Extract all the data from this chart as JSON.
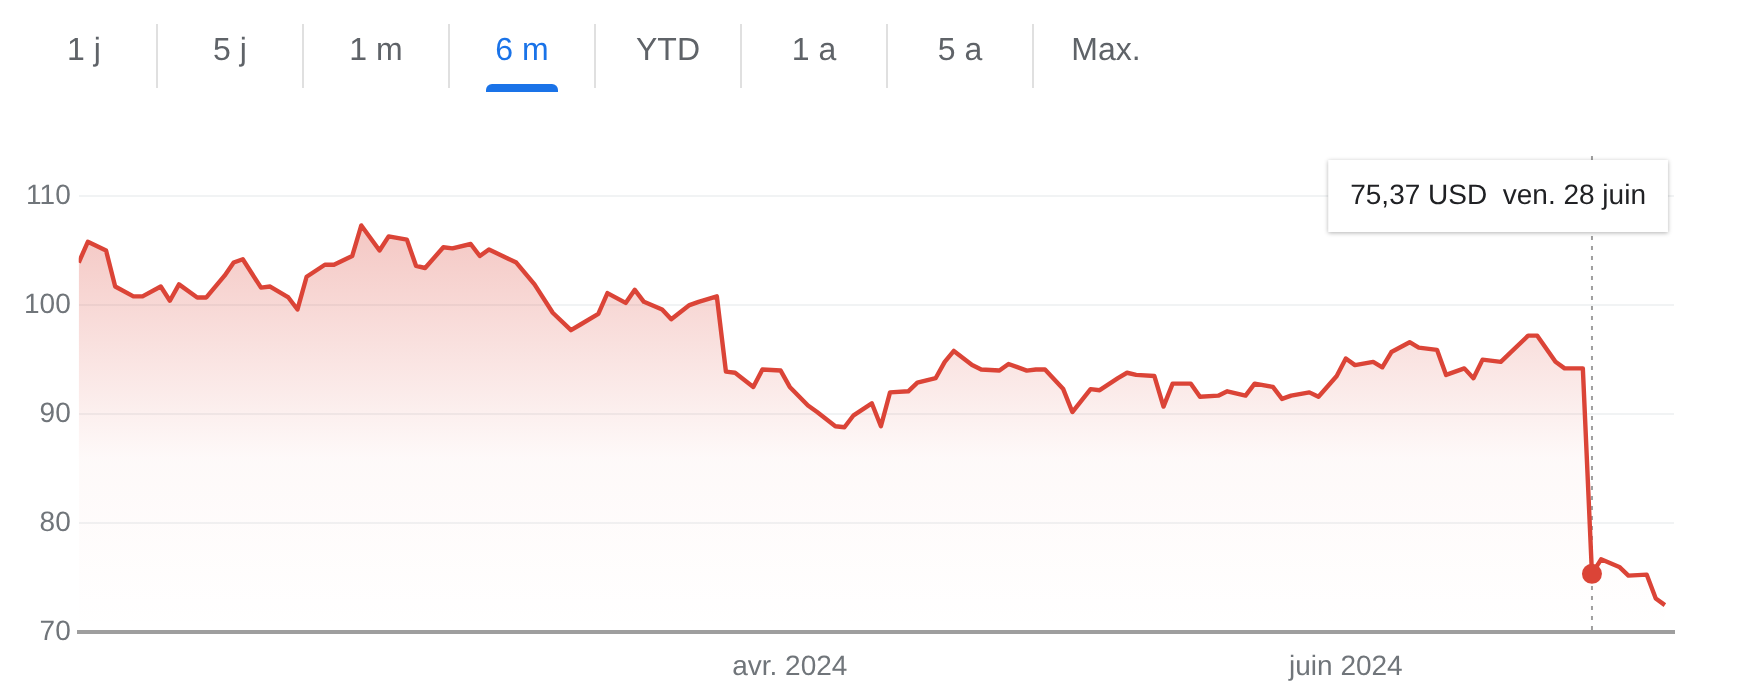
{
  "chart_data": {
    "type": "area",
    "x": [
      "2024-01-14",
      "2024-01-15",
      "2024-01-17",
      "2024-01-18",
      "2024-01-20",
      "2024-01-21",
      "2024-01-23",
      "2024-01-24",
      "2024-01-25",
      "2024-01-27",
      "2024-01-28",
      "2024-01-30",
      "2024-01-31",
      "2024-02-01",
      "2024-02-03",
      "2024-02-04",
      "2024-02-06",
      "2024-02-07",
      "2024-02-08",
      "2024-02-10",
      "2024-02-11",
      "2024-02-13",
      "2024-02-14",
      "2024-02-16",
      "2024-02-17",
      "2024-02-19",
      "2024-02-20",
      "2024-02-21",
      "2024-02-23",
      "2024-02-24",
      "2024-02-26",
      "2024-02-27",
      "2024-02-28",
      "2024-03-01",
      "2024-03-02",
      "2024-03-04",
      "2024-03-06",
      "2024-03-08",
      "2024-03-09",
      "2024-03-11",
      "2024-03-12",
      "2024-03-14",
      "2024-03-15",
      "2024-03-16",
      "2024-03-18",
      "2024-03-19",
      "2024-03-21",
      "2024-03-22",
      "2024-03-24",
      "2024-03-25",
      "2024-03-26",
      "2024-03-28",
      "2024-03-29",
      "2024-03-31",
      "2024-04-01",
      "2024-04-03",
      "2024-04-04",
      "2024-04-06",
      "2024-04-07",
      "2024-04-08",
      "2024-04-10",
      "2024-04-11",
      "2024-04-12",
      "2024-04-14",
      "2024-04-15",
      "2024-04-17",
      "2024-04-18",
      "2024-04-19",
      "2024-04-21",
      "2024-04-22",
      "2024-04-24",
      "2024-04-25",
      "2024-04-27",
      "2024-04-28",
      "2024-04-29",
      "2024-05-01",
      "2024-05-02",
      "2024-05-04",
      "2024-05-05",
      "2024-05-07",
      "2024-05-08",
      "2024-05-09",
      "2024-05-11",
      "2024-05-12",
      "2024-05-13",
      "2024-05-15",
      "2024-05-16",
      "2024-05-18",
      "2024-05-19",
      "2024-05-21",
      "2024-05-22",
      "2024-05-24",
      "2024-05-25",
      "2024-05-26",
      "2024-05-28",
      "2024-05-29",
      "2024-05-31",
      "2024-06-01",
      "2024-06-02",
      "2024-06-04",
      "2024-06-05",
      "2024-06-06",
      "2024-06-08",
      "2024-06-09",
      "2024-06-11",
      "2024-06-12",
      "2024-06-14",
      "2024-06-15",
      "2024-06-16",
      "2024-06-18",
      "2024-06-19",
      "2024-06-21",
      "2024-06-22",
      "2024-06-24",
      "2024-06-25",
      "2024-06-27",
      "2024-06-28",
      "2024-06-29",
      "2024-07-01",
      "2024-07-02",
      "2024-07-04",
      "2024-07-05",
      "2024-07-06"
    ],
    "series": [
      {
        "color": "#db4437",
        "values": [
          103.9,
          105.8,
          105.0,
          101.7,
          100.8,
          100.8,
          101.7,
          100.4,
          101.9,
          100.7,
          100.7,
          102.7,
          103.9,
          104.2,
          101.6,
          101.7,
          100.7,
          99.6,
          102.6,
          103.7,
          103.7,
          104.5,
          107.3,
          105.0,
          106.3,
          106.0,
          103.6,
          103.4,
          105.3,
          105.2,
          105.6,
          104.5,
          105.1,
          104.3,
          103.9,
          101.9,
          99.3,
          97.7,
          98.2,
          99.2,
          101.1,
          100.2,
          101.4,
          100.3,
          99.6,
          98.7,
          100.0,
          100.3,
          100.8,
          93.9,
          93.8,
          92.5,
          94.1,
          94.0,
          92.5,
          90.8,
          90.2,
          88.9,
          88.8,
          89.9,
          91.0,
          88.9,
          92.0,
          92.1,
          92.9,
          93.3,
          94.8,
          95.8,
          94.5,
          94.1,
          94.0,
          94.6,
          94.0,
          94.1,
          94.1,
          92.3,
          90.2,
          92.3,
          92.2,
          93.3,
          93.8,
          93.6,
          93.5,
          90.7,
          92.8,
          92.8,
          91.6,
          91.7,
          92.1,
          91.7,
          92.8,
          92.5,
          91.4,
          91.7,
          92.0,
          91.6,
          93.5,
          95.1,
          94.5,
          94.8,
          94.3,
          95.7,
          96.6,
          96.1,
          95.9,
          93.6,
          94.2,
          93.3,
          95.0,
          94.8,
          95.6,
          97.2,
          97.2,
          94.8,
          94.2,
          94.2,
          75.37,
          76.7,
          76.0,
          75.2,
          75.3,
          73.1,
          72.5
        ]
      }
    ],
    "xlim": [
      "2024-01-14",
      "2024-07-07"
    ],
    "xticks": [
      {
        "value": "2024-04-01",
        "label": "avr. 2024"
      },
      {
        "value": "2024-06-01",
        "label": "juin 2024"
      }
    ],
    "ylim": [
      70,
      110
    ],
    "yticks": [
      70,
      80,
      90,
      100,
      110
    ],
    "grid": "y",
    "marker": "none",
    "line_style": "solid",
    "ref_lines": [
      {
        "axis": "x",
        "value": "2024-06-28",
        "color": "#9e9e9e",
        "line_style": "dotted"
      }
    ],
    "annotations": [
      "1 j",
      "5 j",
      "1 m",
      "6 m",
      "YTD",
      "1 a",
      "5 a",
      "Max.",
      "75,37 USD  ven. 28 juin"
    ]
  }
}
